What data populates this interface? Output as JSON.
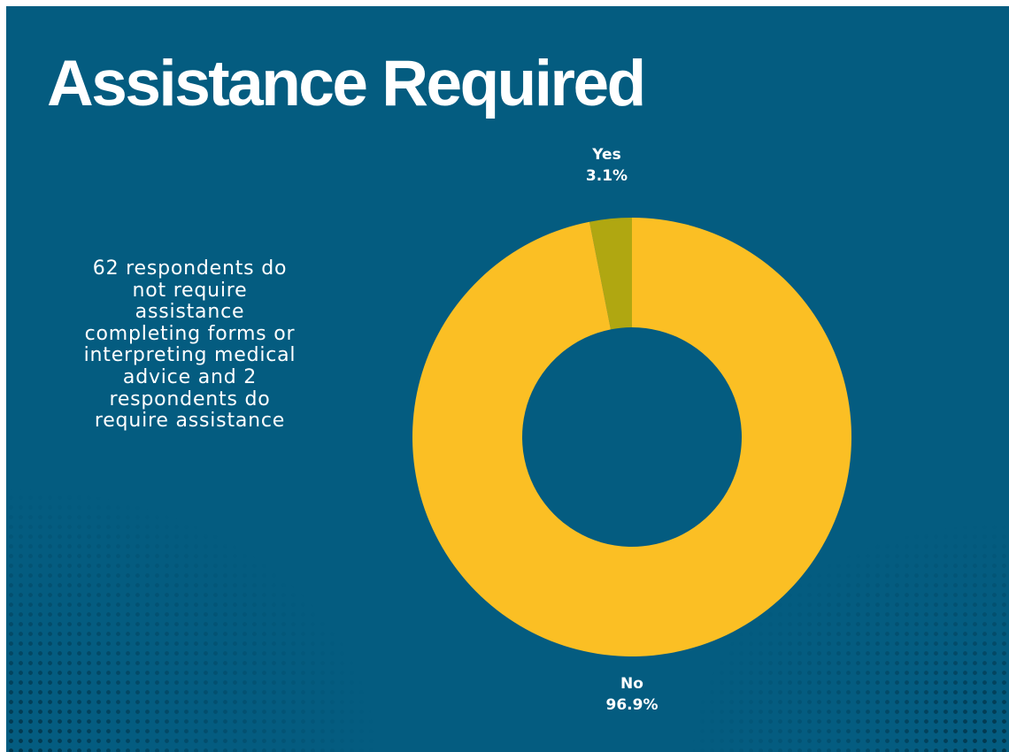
{
  "title": "Assistance Required",
  "description": "62 respondents do not require assistance completing forms or interpreting medical advice and 2 respondents do require assistance",
  "colors": {
    "background": "#045c80",
    "no": "#fbbf24",
    "yes": "#b0a711",
    "text": "#ffffff"
  },
  "chart_data": {
    "type": "pie",
    "style": "donut",
    "title": "",
    "slices": [
      {
        "label": "Yes",
        "value": 3.1,
        "percent_label": "3.1%",
        "color": "#b0a711"
      },
      {
        "label": "No",
        "value": 96.9,
        "percent_label": "96.9%",
        "color": "#fbbf24"
      }
    ],
    "start_angle_deg": 0,
    "direction": "counterclockwise",
    "legend": "none"
  }
}
